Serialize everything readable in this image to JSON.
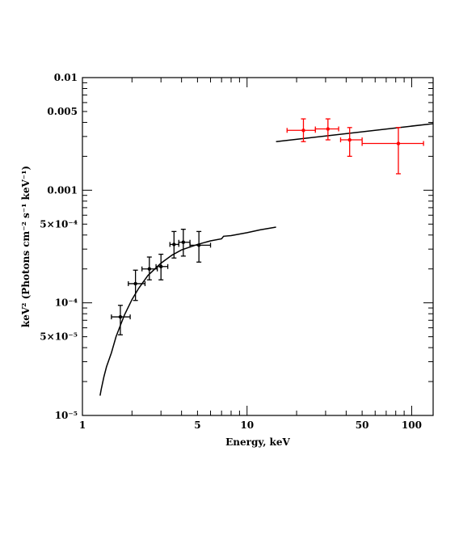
{
  "chart_data": {
    "type": "scatter",
    "xlabel": "Energy, keV",
    "ylabel": "keV² (Photons cm⁻² s⁻¹ keV⁻¹)",
    "xscale": "log",
    "yscale": "log",
    "xlim": [
      1,
      135
    ],
    "ylim": [
      1e-05,
      0.01
    ],
    "x_tick_labels": [
      {
        "value": 1,
        "label": "1"
      },
      {
        "value": 5,
        "label": "5"
      },
      {
        "value": 10,
        "label": "10"
      },
      {
        "value": 50,
        "label": "50"
      },
      {
        "value": 100,
        "label": "100"
      }
    ],
    "y_tick_labels": [
      {
        "value": 0.01,
        "label": "0.01"
      },
      {
        "value": 0.005,
        "label": "0.005"
      },
      {
        "value": 0.001,
        "label": "0.001"
      },
      {
        "value": 0.0005,
        "label": "5×10⁻⁴"
      },
      {
        "value": 0.0001,
        "label": "10⁻⁴"
      },
      {
        "value": 5e-05,
        "label": "5×10⁻⁵"
      },
      {
        "value": 1e-05,
        "label": "10⁻⁵"
      }
    ],
    "series": [
      {
        "color": "#000000",
        "points": [
          {
            "x": 1.7,
            "y": 7.5e-05,
            "xerr": [
              1.5,
              1.95
            ],
            "yerr": [
              5.2e-05,
              9.5e-05
            ]
          },
          {
            "x": 2.1,
            "y": 0.000148,
            "xerr": [
              1.9,
              2.4
            ],
            "yerr": [
              0.000105,
              0.000195
            ]
          },
          {
            "x": 2.55,
            "y": 0.0002,
            "xerr": [
              2.3,
              2.85
            ],
            "yerr": [
              0.00016,
              0.000255
            ]
          },
          {
            "x": 3.0,
            "y": 0.00021,
            "xerr": [
              2.8,
              3.3
            ],
            "yerr": [
              0.00016,
              0.00027
            ]
          },
          {
            "x": 3.6,
            "y": 0.00033,
            "xerr": [
              3.4,
              3.85
            ],
            "yerr": [
              0.00025,
              0.00043
            ]
          },
          {
            "x": 4.1,
            "y": 0.000345,
            "xerr": [
              3.85,
              4.5
            ],
            "yerr": [
              0.00026,
              0.00045
            ]
          },
          {
            "x": 5.1,
            "y": 0.000325,
            "xerr": [
              4.5,
              6.0
            ],
            "yerr": [
              0.00023,
              0.00043
            ]
          }
        ]
      },
      {
        "color": "#ff0000",
        "points": [
          {
            "x": 22,
            "y": 0.0034,
            "xerr": [
              17.5,
              26
            ],
            "yerr": [
              0.0027,
              0.0043
            ]
          },
          {
            "x": 31,
            "y": 0.0035,
            "xerr": [
              26,
              36
            ],
            "yerr": [
              0.0028,
              0.0043
            ]
          },
          {
            "x": 42,
            "y": 0.0028,
            "xerr": [
              37,
              50
            ],
            "yerr": [
              0.002,
              0.0036
            ]
          },
          {
            "x": 83,
            "y": 0.0026,
            "xerr": [
              50,
              118
            ],
            "yerr": [
              0.0014,
              0.0036
            ]
          }
        ]
      }
    ],
    "model_curves": [
      {
        "color": "#000000",
        "points": [
          [
            1.28,
            1.5e-05
          ],
          [
            1.3,
            1.7e-05
          ],
          [
            1.35,
            2.2e-05
          ],
          [
            1.4,
            2.7e-05
          ],
          [
            1.5,
            3.6e-05
          ],
          [
            1.6,
            5e-05
          ],
          [
            1.7,
            6.3e-05
          ],
          [
            1.8,
            7.8e-05
          ],
          [
            2.0,
            0.000107
          ],
          [
            2.2,
            0.000135
          ],
          [
            2.5,
            0.000175
          ],
          [
            3.0,
            0.000225
          ],
          [
            3.5,
            0.000265
          ],
          [
            4.0,
            0.000295
          ],
          [
            5.0,
            0.00033
          ],
          [
            6.0,
            0.000355
          ],
          [
            7.0,
            0.00037
          ],
          [
            7.2,
            0.00039
          ],
          [
            8.0,
            0.000395
          ],
          [
            10.0,
            0.00042
          ],
          [
            12.0,
            0.000445
          ],
          [
            15.0,
            0.00047
          ]
        ]
      },
      {
        "color": "#000000",
        "points": [
          [
            15,
            0.0027
          ],
          [
            135,
            0.0039
          ]
        ]
      }
    ]
  }
}
